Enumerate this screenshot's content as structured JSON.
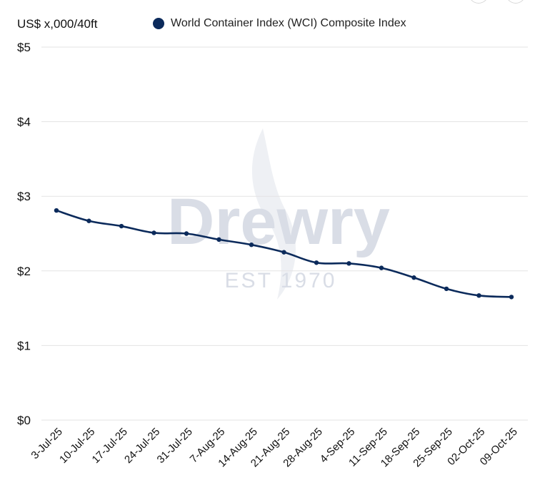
{
  "chart_data": {
    "type": "line",
    "ylabel": "US$ x,000/40ft",
    "legend": [
      "World Container Index (WCI) Composite Index"
    ],
    "categories": [
      "3-Jul-25",
      "10-Jul-25",
      "17-Jul-25",
      "24-Jul-25",
      "31-Jul-25",
      "7-Aug-25",
      "14-Aug-25",
      "21-Aug-25",
      "28-Aug-25",
      "4-Sep-25",
      "11-Sep-25",
      "18-Sep-25",
      "25-Sep-25",
      "02-Oct-25",
      "09-Oct-25"
    ],
    "series": [
      {
        "name": "World Container Index (WCI) Composite Index",
        "values": [
          2.81,
          2.67,
          2.6,
          2.51,
          2.5,
          2.42,
          2.35,
          2.25,
          2.11,
          2.1,
          2.04,
          1.91,
          1.76,
          1.67,
          1.65
        ]
      }
    ],
    "ylim": [
      0,
      5
    ],
    "yticks": [
      "$0",
      "$1",
      "$2",
      "$3",
      "$4",
      "$5"
    ],
    "grid": true,
    "legend_position": "top"
  },
  "watermark": {
    "name": "Drewry",
    "tagline": "EST 1970"
  },
  "colors": {
    "line": "#0b2a5b",
    "grid": "#e3e3e3",
    "watermark": "#d9dde6"
  }
}
